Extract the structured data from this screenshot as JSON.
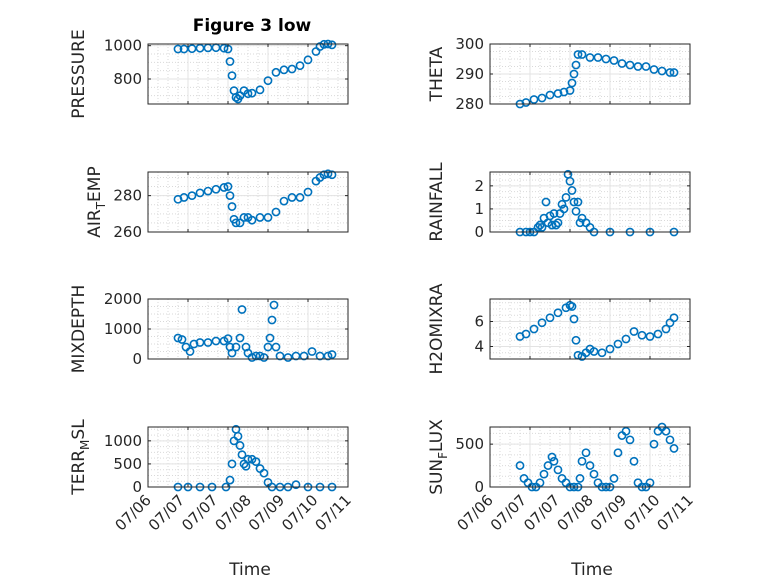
{
  "chart_data": [
    {
      "type": "scatter",
      "title": "Figure 3 low",
      "ylabel": "PRESSURE",
      "xlabel": "",
      "xlim": [
        "07/06",
        "07/11"
      ],
      "ylim": [
        650,
        1010
      ],
      "yticks": [
        800,
        1000
      ],
      "grid": "on",
      "minor_grid": "on",
      "marker": "open-circle",
      "x": [
        6.75,
        6.9,
        7.1,
        7.3,
        7.5,
        7.7,
        7.9,
        8.0,
        8.05,
        8.1,
        8.15,
        8.2,
        8.25,
        8.3,
        8.4,
        8.5,
        8.6,
        8.8,
        9.0,
        9.2,
        9.4,
        9.6,
        9.8,
        10.0,
        10.2,
        10.3,
        10.4,
        10.5,
        10.6
      ],
      "y": [
        980,
        980,
        982,
        985,
        987,
        988,
        985,
        980,
        905,
        820,
        730,
        690,
        680,
        700,
        730,
        712,
        715,
        735,
        790,
        840,
        855,
        860,
        880,
        915,
        965,
        995,
        1008,
        1010,
        1005
      ]
    },
    {
      "type": "scatter",
      "title": "",
      "ylabel": "THETA",
      "xlabel": "",
      "xlim": [
        "07/06",
        "07/11"
      ],
      "ylim": [
        280,
        300
      ],
      "yticks": [
        280,
        290,
        300
      ],
      "grid": "on",
      "minor_grid": "on",
      "marker": "open-circle",
      "x": [
        6.75,
        6.9,
        7.1,
        7.3,
        7.5,
        7.7,
        7.85,
        8.0,
        8.05,
        8.1,
        8.15,
        8.2,
        8.3,
        8.5,
        8.7,
        8.9,
        9.1,
        9.3,
        9.5,
        9.7,
        9.9,
        10.1,
        10.3,
        10.5,
        10.6
      ],
      "y": [
        280,
        280.5,
        281.5,
        282,
        283,
        283.5,
        284,
        284.5,
        287,
        290,
        293,
        296.5,
        296.5,
        295.5,
        295.5,
        295,
        294.5,
        293.5,
        293,
        292.5,
        292.5,
        291.5,
        291,
        290.5,
        290.5
      ]
    },
    {
      "type": "scatter",
      "title": "",
      "ylabel": "AIR_TEMP",
      "xlabel": "",
      "xlim": [
        "07/06",
        "07/11"
      ],
      "ylim": [
        260,
        293
      ],
      "yticks": [
        260,
        280
      ],
      "grid": "on",
      "minor_grid": "on",
      "marker": "open-circle",
      "x": [
        6.75,
        6.9,
        7.1,
        7.3,
        7.5,
        7.7,
        7.9,
        8.0,
        8.05,
        8.1,
        8.15,
        8.2,
        8.3,
        8.4,
        8.5,
        8.6,
        8.8,
        9.0,
        9.2,
        9.4,
        9.6,
        9.8,
        10.0,
        10.2,
        10.3,
        10.4,
        10.5,
        10.6
      ],
      "y": [
        278,
        279,
        280,
        281.5,
        282.5,
        283.5,
        284.5,
        285,
        280,
        274,
        267,
        265,
        265,
        268,
        268,
        266.5,
        268,
        268,
        271,
        277,
        279,
        279,
        282,
        288,
        290,
        291.5,
        292,
        291.5
      ]
    },
    {
      "type": "scatter",
      "title": "",
      "ylabel": "RAINFALL",
      "xlabel": "",
      "xlim": [
        "07/06",
        "07/11"
      ],
      "ylim": [
        0,
        2.6
      ],
      "yticks": [
        0,
        1,
        2
      ],
      "grid": "on",
      "minor_grid": "on",
      "marker": "open-circle",
      "x": [
        6.75,
        6.9,
        7.0,
        7.1,
        7.2,
        7.25,
        7.3,
        7.35,
        7.4,
        7.45,
        7.5,
        7.55,
        7.6,
        7.65,
        7.7,
        7.75,
        7.8,
        7.85,
        7.9,
        7.95,
        8.0,
        8.05,
        8.1,
        8.15,
        8.2,
        8.25,
        8.3,
        8.4,
        8.5,
        8.6,
        9.0,
        9.5,
        10.0,
        10.6
      ],
      "y": [
        0,
        0,
        0,
        0,
        0.2,
        0.3,
        0.2,
        0.6,
        1.3,
        0.4,
        0.7,
        0.3,
        0.8,
        0.3,
        0.4,
        0.8,
        1.2,
        1.0,
        1.5,
        2.5,
        2.2,
        1.8,
        1.3,
        0.9,
        1.3,
        0.4,
        0.6,
        0.4,
        0.2,
        0,
        0,
        0,
        0,
        0
      ]
    },
    {
      "type": "scatter",
      "title": "",
      "ylabel": "MIXDEPTH",
      "xlabel": "",
      "xlim": [
        "07/06",
        "07/11"
      ],
      "ylim": [
        0,
        2000
      ],
      "yticks": [
        0,
        1000,
        2000
      ],
      "grid": "on",
      "minor_grid": "on",
      "marker": "open-circle",
      "x": [
        6.75,
        6.85,
        6.95,
        7.05,
        7.15,
        7.3,
        7.5,
        7.7,
        7.9,
        8.0,
        8.05,
        8.1,
        8.2,
        8.3,
        8.35,
        8.45,
        8.5,
        8.6,
        8.7,
        8.8,
        8.9,
        9.0,
        9.05,
        9.1,
        9.15,
        9.2,
        9.3,
        9.5,
        9.7,
        9.9,
        10.1,
        10.3,
        10.5,
        10.6
      ],
      "y": [
        700,
        650,
        400,
        250,
        500,
        550,
        550,
        600,
        600,
        680,
        400,
        200,
        400,
        700,
        1650,
        400,
        200,
        50,
        100,
        100,
        50,
        400,
        700,
        1300,
        1800,
        400,
        100,
        50,
        100,
        100,
        250,
        100,
        100,
        150
      ]
    },
    {
      "type": "scatter",
      "title": "",
      "ylabel": "H2OMIXRA",
      "xlabel": "",
      "xlim": [
        "07/06",
        "07/11"
      ],
      "ylim": [
        3,
        7.8
      ],
      "yticks": [
        4,
        6
      ],
      "grid": "on",
      "minor_grid": "on",
      "marker": "open-circle",
      "x": [
        6.75,
        6.9,
        7.1,
        7.3,
        7.5,
        7.7,
        7.9,
        8.0,
        8.05,
        8.1,
        8.15,
        8.2,
        8.3,
        8.4,
        8.5,
        8.6,
        8.8,
        9.0,
        9.2,
        9.4,
        9.6,
        9.8,
        10.0,
        10.2,
        10.4,
        10.5,
        10.6
      ],
      "y": [
        4.8,
        5,
        5.4,
        5.9,
        6.3,
        6.7,
        7.1,
        7.3,
        7.2,
        6.2,
        4.5,
        3.3,
        3.2,
        3.5,
        3.8,
        3.6,
        3.5,
        3.8,
        4.2,
        4.6,
        5.2,
        4.9,
        4.8,
        5,
        5.4,
        5.9,
        6.3
      ]
    },
    {
      "type": "scatter",
      "title": "",
      "ylabel": "TERR_MSL",
      "xlabel": "Time",
      "xlim": [
        "07/06",
        "07/11"
      ],
      "ylim": [
        0,
        1300
      ],
      "yticks": [
        0,
        500,
        1000
      ],
      "xticks": [
        "07/06",
        "07/07",
        "07/07",
        "07/08",
        "07/09",
        "07/10",
        "07/11"
      ],
      "grid": "on",
      "minor_grid": "on",
      "marker": "open-circle",
      "x": [
        6.75,
        7.0,
        7.3,
        7.6,
        7.95,
        8.05,
        8.1,
        8.15,
        8.2,
        8.25,
        8.3,
        8.35,
        8.4,
        8.45,
        8.5,
        8.6,
        8.7,
        8.8,
        8.9,
        9.0,
        9.1,
        9.3,
        9.5,
        9.7,
        10.0,
        10.3,
        10.6
      ],
      "y": [
        0,
        0,
        0,
        0,
        0,
        150,
        500,
        1000,
        1250,
        1100,
        900,
        700,
        500,
        450,
        600,
        600,
        550,
        400,
        300,
        100,
        0,
        0,
        0,
        50,
        0,
        0,
        0
      ]
    },
    {
      "type": "scatter",
      "title": "",
      "ylabel": "SUN_FLUX",
      "xlabel": "Time",
      "xlim": [
        "07/06",
        "07/11"
      ],
      "ylim": [
        0,
        700
      ],
      "yticks": [
        0,
        500
      ],
      "xticks": [
        "07/06",
        "07/07",
        "07/07",
        "07/08",
        "07/09",
        "07/10",
        "07/11"
      ],
      "grid": "on",
      "minor_grid": "on",
      "marker": "open-circle",
      "x": [
        6.75,
        6.85,
        6.95,
        7.05,
        7.15,
        7.25,
        7.35,
        7.45,
        7.55,
        7.6,
        7.7,
        7.8,
        7.9,
        8.0,
        8.1,
        8.2,
        8.25,
        8.3,
        8.4,
        8.5,
        8.6,
        8.7,
        8.8,
        8.9,
        9.0,
        9.1,
        9.2,
        9.3,
        9.4,
        9.5,
        9.6,
        9.7,
        9.8,
        9.9,
        10.0,
        10.1,
        10.2,
        10.3,
        10.4,
        10.5,
        10.6
      ],
      "y": [
        250,
        100,
        50,
        0,
        0,
        50,
        150,
        250,
        350,
        300,
        200,
        100,
        50,
        0,
        0,
        0,
        100,
        300,
        400,
        250,
        150,
        50,
        0,
        0,
        0,
        100,
        400,
        600,
        650,
        550,
        300,
        50,
        0,
        0,
        50,
        500,
        650,
        700,
        650,
        550,
        450
      ]
    }
  ],
  "layout_labels": {
    "title": "Figure 3 low"
  }
}
